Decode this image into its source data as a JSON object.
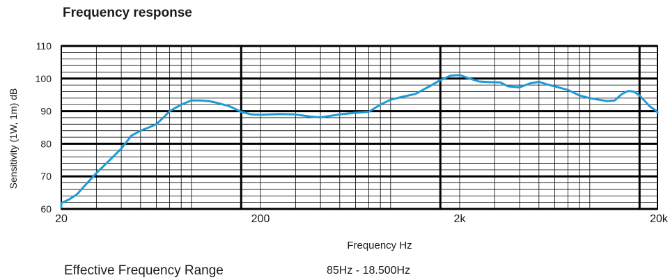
{
  "chart_data": {
    "type": "line",
    "title": "Frequency response",
    "xlabel": "Frequency Hz",
    "ylabel": "Sensitivity (1W, 1m) dB",
    "x_scale": "log",
    "xlim": [
      18,
      21000
    ],
    "ylim": [
      60,
      110
    ],
    "yticks": [
      60,
      70,
      80,
      90,
      100,
      110
    ],
    "xticks": [
      {
        "value": 20,
        "label": "20"
      },
      {
        "value": 200,
        "label": "200"
      },
      {
        "value": 2000,
        "label": "2k"
      },
      {
        "value": 20000,
        "label": "20k"
      }
    ],
    "grid": true,
    "series": [
      {
        "color": "#1e9ad6",
        "x": [
          18,
          19,
          20,
          22,
          24,
          27,
          30,
          35,
          40,
          45,
          50,
          55,
          60,
          65,
          70,
          80,
          90,
          100,
          110,
          120,
          140,
          160,
          180,
          200,
          250,
          300,
          350,
          400,
          500,
          600,
          700,
          800,
          900,
          1000,
          1200,
          1400,
          1600,
          1800,
          2000,
          2200,
          2500,
          2800,
          3200,
          3500,
          4000,
          4500,
          5000,
          5500,
          6000,
          7000,
          8000,
          9000,
          10000,
          11000,
          12000,
          13000,
          14000,
          15000,
          16000,
          18000,
          20000,
          21000
        ],
        "values": [
          60.5,
          61.5,
          61.8,
          63,
          64.5,
          68,
          71,
          75,
          78.5,
          82.5,
          84,
          85,
          86,
          88,
          90,
          92,
          93.3,
          93.3,
          93.1,
          92.6,
          91.5,
          89.8,
          89,
          88.9,
          89.1,
          89,
          88.4,
          88.1,
          89,
          89.5,
          89.8,
          92,
          93.5,
          94.2,
          95.3,
          97.5,
          99.5,
          100.9,
          101.1,
          100.2,
          99.1,
          98.9,
          98.8,
          97.6,
          97.3,
          98.5,
          99,
          98.2,
          97.6,
          96.5,
          94.8,
          94,
          93.5,
          93.1,
          93.3,
          95.2,
          96.2,
          96,
          94.8,
          91.5,
          89.8,
          89.5
        ]
      }
    ]
  },
  "footer": {
    "range_label": "Effective Frequency Range",
    "range_value": "85Hz - 18.500Hz"
  }
}
